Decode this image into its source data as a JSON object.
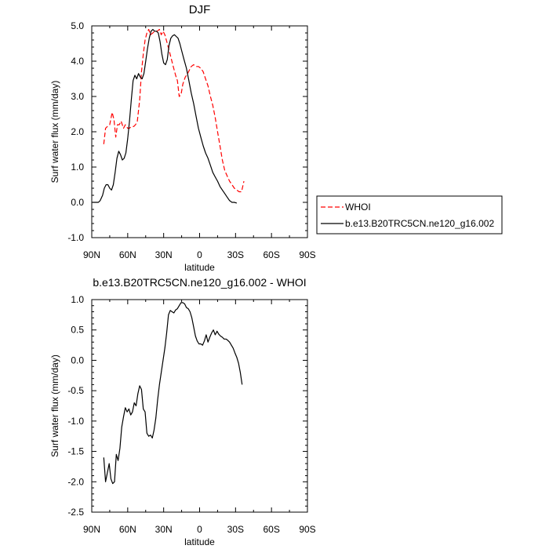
{
  "chart_data": [
    {
      "type": "line",
      "title": "DJF",
      "xlabel": "latitude",
      "ylabel": "Surf water flux (mm/day)",
      "xlim": [
        90,
        -90
      ],
      "ylim": [
        -1.0,
        5.0
      ],
      "x_ticks": [
        90,
        60,
        30,
        0,
        -30,
        -60,
        -90
      ],
      "x_tick_labels": [
        "90N",
        "60N",
        "30N",
        "0",
        "30S",
        "60S",
        "90S"
      ],
      "y_ticks": [
        -1,
        0,
        1,
        2,
        3,
        4,
        5
      ],
      "y_tick_labels": [
        "-1.0",
        "0.0",
        "1.0",
        "2.0",
        "3.0",
        "4.0",
        "5.0"
      ],
      "legend_position": "outside-right",
      "series": [
        {
          "name": "WHOI",
          "color": "#ff0000",
          "dash": true,
          "points": [
            [
              80,
              1.65
            ],
            [
              78.5,
              2.1
            ],
            [
              77,
              2.15
            ],
            [
              75,
              2.2
            ],
            [
              73,
              2.55
            ],
            [
              71.5,
              2.35
            ],
            [
              70,
              1.85
            ],
            [
              68.5,
              2.2
            ],
            [
              67,
              2.2
            ],
            [
              65.5,
              2.3
            ],
            [
              63.5,
              2.1
            ],
            [
              62,
              2.2
            ],
            [
              60,
              2.1
            ],
            [
              58.5,
              2.1
            ],
            [
              57,
              2.15
            ],
            [
              55,
              2.15
            ],
            [
              53.5,
              2.2
            ],
            [
              52,
              2.3
            ],
            [
              50,
              2.9
            ],
            [
              48.5,
              3.7
            ],
            [
              47,
              4.2
            ],
            [
              45.5,
              4.6
            ],
            [
              44,
              4.8
            ],
            [
              42.5,
              4.9
            ],
            [
              41,
              4.75
            ],
            [
              39,
              4.8
            ],
            [
              37.5,
              4.85
            ],
            [
              35.5,
              4.85
            ],
            [
              33.5,
              4.9
            ],
            [
              32,
              4.75
            ],
            [
              30.5,
              4.85
            ],
            [
              29,
              4.75
            ],
            [
              27,
              4.5
            ],
            [
              25,
              4.25
            ],
            [
              23.5,
              4.05
            ],
            [
              22,
              3.85
            ],
            [
              20,
              3.6
            ],
            [
              18.5,
              3.45
            ],
            [
              17,
              3.0
            ],
            [
              15.5,
              3.05
            ],
            [
              14,
              3.35
            ],
            [
              12,
              3.55
            ],
            [
              10,
              3.65
            ],
            [
              8.5,
              3.75
            ],
            [
              7,
              3.85
            ],
            [
              5,
              3.9
            ],
            [
              3,
              3.85
            ],
            [
              1,
              3.85
            ],
            [
              -1,
              3.8
            ],
            [
              -3,
              3.7
            ],
            [
              -5,
              3.5
            ],
            [
              -7,
              3.3
            ],
            [
              -9,
              3.0
            ],
            [
              -11,
              2.75
            ],
            [
              -13,
              2.4
            ],
            [
              -15,
              2.0
            ],
            [
              -17,
              1.6
            ],
            [
              -19,
              1.2
            ],
            [
              -21,
              0.9
            ],
            [
              -23,
              0.75
            ],
            [
              -25,
              0.6
            ],
            [
              -27,
              0.5
            ],
            [
              -29,
              0.4
            ],
            [
              -31,
              0.35
            ],
            [
              -33,
              0.3
            ],
            [
              -35,
              0.3
            ],
            [
              -37,
              0.6
            ]
          ]
        },
        {
          "name": "b.e13.B20TRC5CN.ne120_g16.002",
          "color": "#000000",
          "dash": false,
          "points": [
            [
              89.5,
              0.0
            ],
            [
              87,
              0.0
            ],
            [
              84.5,
              0.0
            ],
            [
              83,
              0.05
            ],
            [
              81,
              0.2
            ],
            [
              79.5,
              0.4
            ],
            [
              78,
              0.5
            ],
            [
              76.5,
              0.5
            ],
            [
              75,
              0.4
            ],
            [
              73.5,
              0.35
            ],
            [
              72,
              0.5
            ],
            [
              70.5,
              0.85
            ],
            [
              69,
              1.25
            ],
            [
              67.5,
              1.45
            ],
            [
              66,
              1.35
            ],
            [
              64.5,
              1.2
            ],
            [
              63,
              1.25
            ],
            [
              61.5,
              1.4
            ],
            [
              60,
              1.8
            ],
            [
              58.5,
              2.3
            ],
            [
              57,
              2.9
            ],
            [
              55.5,
              3.45
            ],
            [
              54,
              3.6
            ],
            [
              52.5,
              3.5
            ],
            [
              51,
              3.65
            ],
            [
              49.5,
              3.55
            ],
            [
              48,
              3.5
            ],
            [
              46.5,
              3.65
            ],
            [
              45,
              4.0
            ],
            [
              43.5,
              4.35
            ],
            [
              42,
              4.65
            ],
            [
              40.5,
              4.85
            ],
            [
              39,
              4.9
            ],
            [
              37.5,
              4.85
            ],
            [
              36,
              4.85
            ],
            [
              34.5,
              4.8
            ],
            [
              33,
              4.55
            ],
            [
              31.5,
              4.2
            ],
            [
              30,
              3.95
            ],
            [
              28.5,
              3.9
            ],
            [
              27,
              4.05
            ],
            [
              25.5,
              4.45
            ],
            [
              24,
              4.65
            ],
            [
              22.5,
              4.72
            ],
            [
              21,
              4.75
            ],
            [
              19.5,
              4.7
            ],
            [
              18,
              4.65
            ],
            [
              16.5,
              4.5
            ],
            [
              15,
              4.3
            ],
            [
              13,
              4.05
            ],
            [
              11,
              3.8
            ],
            [
              9,
              3.45
            ],
            [
              7,
              3.1
            ],
            [
              5,
              2.8
            ],
            [
              3,
              2.45
            ],
            [
              1,
              2.1
            ],
            [
              -1,
              1.85
            ],
            [
              -3,
              1.6
            ],
            [
              -5,
              1.4
            ],
            [
              -7,
              1.25
            ],
            [
              -9,
              1.05
            ],
            [
              -11,
              0.85
            ],
            [
              -13,
              0.72
            ],
            [
              -15,
              0.6
            ],
            [
              -17,
              0.45
            ],
            [
              -19,
              0.35
            ],
            [
              -21,
              0.25
            ],
            [
              -23,
              0.15
            ],
            [
              -25,
              0.05
            ],
            [
              -27,
              0.0
            ],
            [
              -29,
              0.0
            ],
            [
              -31,
              -0.02
            ]
          ]
        }
      ]
    },
    {
      "type": "line",
      "title": "b.e13.B20TRC5CN.ne120_g16.002 - WHOI",
      "xlabel": "latitude",
      "ylabel": "Surf water flux (mm/day)",
      "xlim": [
        90,
        -90
      ],
      "ylim": [
        -2.5,
        1.0
      ],
      "x_ticks": [
        90,
        60,
        30,
        0,
        -30,
        -60,
        -90
      ],
      "x_tick_labels": [
        "90N",
        "60N",
        "30N",
        "0",
        "30S",
        "60S",
        "90S"
      ],
      "y_ticks": [
        -2.5,
        -2.0,
        -1.5,
        -1.0,
        -0.5,
        0.0,
        0.5,
        1.0
      ],
      "y_tick_labels": [
        "-2.5",
        "-2.0",
        "-1.5",
        "-1.0",
        "-0.5",
        "0.0",
        "0.5",
        "1.0"
      ],
      "series": [
        {
          "color": "#000000",
          "dash": false,
          "points": [
            [
              80,
              -1.6
            ],
            [
              78.5,
              -2.0
            ],
            [
              77,
              -1.85
            ],
            [
              75.5,
              -1.7
            ],
            [
              74,
              -1.95
            ],
            [
              72.5,
              -2.03
            ],
            [
              71,
              -2.0
            ],
            [
              69.5,
              -1.55
            ],
            [
              68,
              -1.65
            ],
            [
              66.5,
              -1.45
            ],
            [
              65,
              -1.1
            ],
            [
              63.5,
              -0.93
            ],
            [
              62,
              -0.78
            ],
            [
              60.5,
              -0.85
            ],
            [
              59,
              -0.8
            ],
            [
              57.5,
              -0.9
            ],
            [
              56,
              -0.85
            ],
            [
              54.5,
              -0.7
            ],
            [
              53,
              -0.75
            ],
            [
              51.5,
              -0.55
            ],
            [
              50,
              -0.42
            ],
            [
              48.5,
              -0.48
            ],
            [
              47,
              -0.8
            ],
            [
              45.5,
              -0.85
            ],
            [
              44,
              -1.2
            ],
            [
              42.5,
              -1.25
            ],
            [
              41,
              -1.23
            ],
            [
              39.5,
              -1.28
            ],
            [
              38,
              -1.15
            ],
            [
              36.5,
              -0.95
            ],
            [
              35,
              -0.65
            ],
            [
              33.5,
              -0.4
            ],
            [
              32,
              -0.2
            ],
            [
              30.5,
              0.0
            ],
            [
              29,
              0.2
            ],
            [
              27.5,
              0.45
            ],
            [
              26,
              0.75
            ],
            [
              24.5,
              0.82
            ],
            [
              23,
              0.8
            ],
            [
              21.5,
              0.78
            ],
            [
              20,
              0.83
            ],
            [
              18.5,
              0.85
            ],
            [
              17,
              0.9
            ],
            [
              15.5,
              0.95
            ],
            [
              14,
              0.95
            ],
            [
              12.5,
              0.93
            ],
            [
              11,
              0.87
            ],
            [
              9.5,
              0.85
            ],
            [
              8,
              0.8
            ],
            [
              6.5,
              0.7
            ],
            [
              5,
              0.55
            ],
            [
              3.5,
              0.4
            ],
            [
              2,
              0.32
            ],
            [
              0.5,
              0.27
            ],
            [
              -1,
              0.27
            ],
            [
              -2.5,
              0.25
            ],
            [
              -4,
              0.32
            ],
            [
              -5.5,
              0.42
            ],
            [
              -7,
              0.3
            ],
            [
              -8.5,
              0.38
            ],
            [
              -10,
              0.45
            ],
            [
              -11.5,
              0.5
            ],
            [
              -13,
              0.42
            ],
            [
              -14.5,
              0.48
            ],
            [
              -16,
              0.43
            ],
            [
              -17.5,
              0.4
            ],
            [
              -19,
              0.38
            ],
            [
              -20.5,
              0.35
            ],
            [
              -22,
              0.35
            ],
            [
              -23.5,
              0.33
            ],
            [
              -25,
              0.3
            ],
            [
              -26.5,
              0.25
            ],
            [
              -28,
              0.2
            ],
            [
              -29.5,
              0.12
            ],
            [
              -31,
              0.05
            ],
            [
              -32.5,
              -0.05
            ],
            [
              -34,
              -0.2
            ],
            [
              -35.5,
              -0.4
            ]
          ]
        }
      ]
    }
  ]
}
